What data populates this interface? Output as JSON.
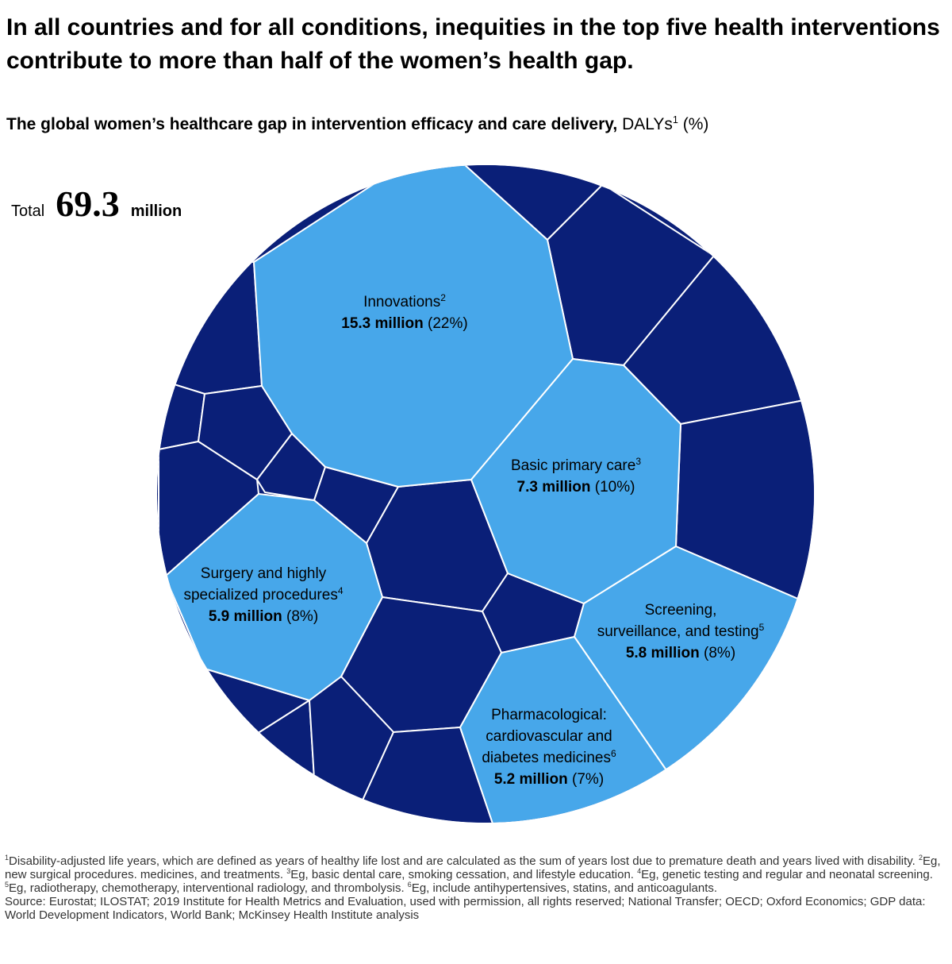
{
  "headline": "In all countries and for all conditions, inequities in the top five health interventions contribute to more than half of the women’s health gap.",
  "subtitle": {
    "bold": "The global women’s healthcare gap in intervention efficacy and care delivery,",
    "regular": " DALYs",
    "sup": "1",
    "unit": " (%)"
  },
  "total": {
    "label": "Total",
    "value": "69.3",
    "unit": "million"
  },
  "colors": {
    "highlight": "#47A7EA",
    "other": "#0A1F78",
    "border": "#ffffff"
  },
  "chart_data": {
    "type": "voronoi-treemap",
    "title": "The global women’s healthcare gap in intervention efficacy and care delivery, DALYs (%)",
    "total_million": 69.3,
    "series": [
      {
        "name": "Innovations",
        "sup": "2",
        "value_label": "15.3 million",
        "share_label": "(22%)",
        "value": 15.3,
        "share": 22,
        "highlight": true
      },
      {
        "name": "Basic primary care",
        "sup": "3",
        "value_label": "7.3 million",
        "share_label": "(10%)",
        "value": 7.3,
        "share": 10,
        "highlight": true
      },
      {
        "name": "Surgery and highly specialized procedures",
        "sup": "4",
        "value_label": "5.9 million",
        "share_label": "(8%)",
        "value": 5.9,
        "share": 8,
        "highlight": true
      },
      {
        "name": "Screening, surveillance, and testing",
        "sup": "5",
        "value_label": "5.8 million",
        "share_label": "(8%)",
        "value": 5.8,
        "share": 8,
        "highlight": true
      },
      {
        "name": "Pharmacological: cardiovascular and diabetes medicines",
        "sup": "6",
        "value_label": "5.2 million",
        "share_label": "(7%)",
        "value": 5.2,
        "share": 7,
        "highlight": true
      }
    ],
    "other_interventions_count": 20
  },
  "labels": {
    "innovations": {
      "lines": [
        "Innovations"
      ],
      "sup": "2",
      "value": "15.3 million",
      "share": " (22%)"
    },
    "primary": {
      "lines": [
        "Basic primary care"
      ],
      "sup": "3",
      "value": "7.3 million",
      "share": " (10%)"
    },
    "surgery": {
      "lines": [
        "Surgery and highly",
        "specialized procedures"
      ],
      "sup": "4",
      "value": "5.9 million",
      "share": " (8%)"
    },
    "screening": {
      "lines": [
        "Screening,",
        "surveillance, and testing"
      ],
      "sup": "5",
      "value": "5.8 million",
      "share": " (8%)"
    },
    "pharma": {
      "lines": [
        "Pharmacological:",
        "cardiovascular and",
        "diabetes medicines"
      ],
      "sup": "6",
      "value": "5.2 million",
      "share": " (7%)"
    }
  },
  "footnotes": {
    "n1_sup": "1",
    "n1": "Disability-adjusted life years, which are defined as years of healthy life lost and are calculated as the sum of years lost due to premature death and years lived with disability.",
    "n2_sup": "2",
    "n2": "Eg, new surgical procedures. medicines, and treatments.",
    "n3_sup": "3",
    "n3": "Eg, basic dental care, smoking cessation, and lifestyle education.",
    "n4_sup": "4",
    "n4": "Eg, genetic testing and regular and neonatal screening.",
    "n5_sup": "5",
    "n5": "Eg, radiotherapy, chemotherapy, interventional radiology, and thrombolysis.",
    "n6_sup": "6",
    "n6": "Eg, include antihypertensives, statins, and anticoagulants.",
    "source": "Source: Eurostat; ILOSTAT; 2019 Institute for Health Metrics and Evaluation, used with permission, all rights reserved; National Transfer; OECD; Oxford Economics; GDP data: World Development Indicators, World Bank; McKinsey Health Institute analysis"
  }
}
